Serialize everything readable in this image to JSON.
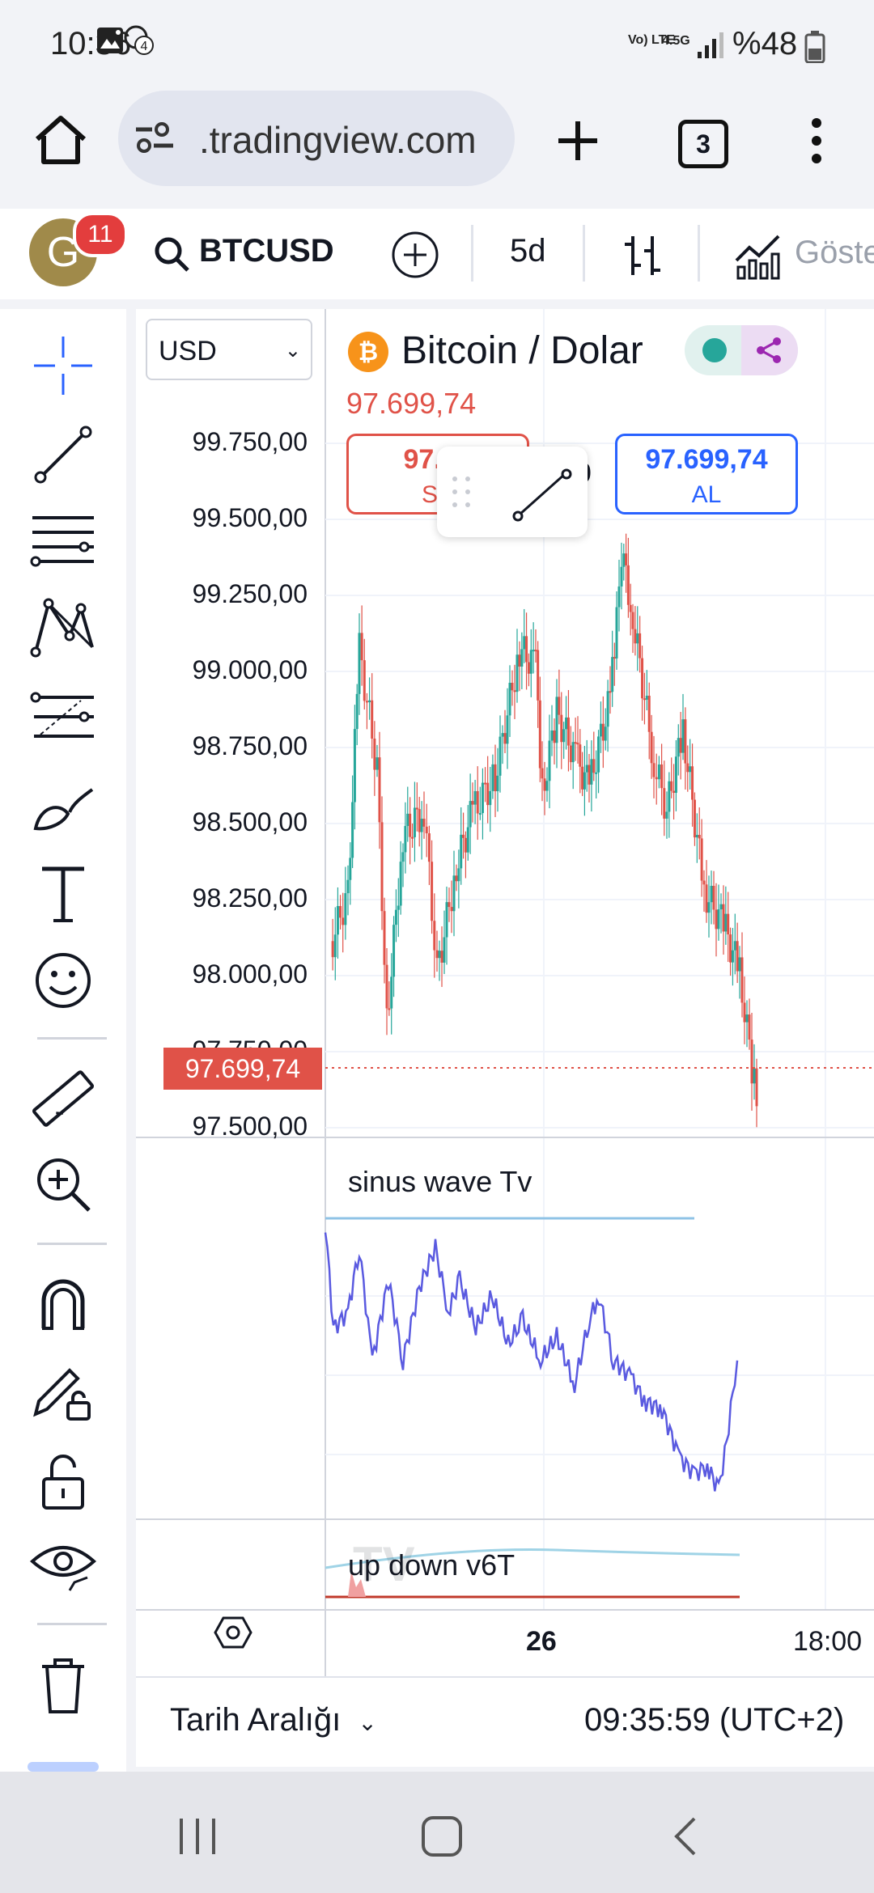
{
  "status": {
    "time": "10:36",
    "notification_count": "4",
    "network": "Vo) LTE",
    "network2": "4.5G",
    "battery": "%48"
  },
  "browser": {
    "url": ".tradingview.com",
    "tab_count": "3"
  },
  "toolbar": {
    "avatar_letter": "G",
    "avatar_badge": "11",
    "symbol": "BTCUSD",
    "interval": "5d",
    "indicators_label": "Göste"
  },
  "chart": {
    "currency": "USD",
    "symbol_title": "Bitcoin / Dolar",
    "title_price": "97.699,74",
    "sell_price": "97.69",
    "sell_label": "SA",
    "buy_price": "97.699,74",
    "buy_label": "AL",
    "hidden_char": "0",
    "current_price": "97.699,74",
    "price_axis": [
      "99.750,00",
      "99.500,00",
      "99.250,00",
      "99.000,00",
      "98.750,00",
      "98.500,00",
      "98.250,00",
      "98.000,00",
      "97.750,00",
      "97.500,00"
    ],
    "indicator1": "sinus wave Tv",
    "indicator2": "up down v6T",
    "x_axis": [
      "26",
      "18:00"
    ]
  },
  "bottom": {
    "date_range": "Tarih Aralığı",
    "clock": "09:35:59 (UTC+2)"
  },
  "colors": {
    "up": "#26a69a",
    "down": "#e05248",
    "indicator_line": "#5a5ae0",
    "accent": "#2962ff"
  }
}
